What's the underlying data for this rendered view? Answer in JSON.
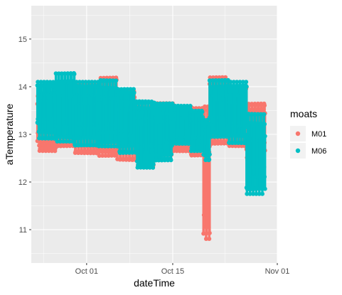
{
  "chart_data": {
    "type": "scatter",
    "title": "",
    "xlabel": "dateTime",
    "ylabel": "aTemperature",
    "x_ticks": [
      "Oct 01",
      "Oct 15",
      "Nov 01"
    ],
    "x_tick_dates": [
      "2019-10-01",
      "2019-10-15",
      "2019-11-01"
    ],
    "xlim": [
      "2019-09-22",
      "2019-11-01"
    ],
    "y_ticks": [
      11,
      12,
      13,
      14,
      15
    ],
    "ylim": [
      10.3,
      15.7
    ],
    "grid": true,
    "legend": {
      "title": "moats",
      "position": "right"
    },
    "series": [
      {
        "name": "M01",
        "color": "#F8766D",
        "ranges": [
          {
            "x_start": "2019-09-23",
            "x_end": "2019-09-26",
            "y_low": 12.65,
            "y_high": 13.85
          },
          {
            "x_start": "2019-09-26",
            "x_end": "2019-09-29",
            "y_low": 12.75,
            "y_high": 14.0
          },
          {
            "x_start": "2019-09-29",
            "x_end": "2019-10-03",
            "y_low": 12.6,
            "y_high": 14.05
          },
          {
            "x_start": "2019-10-03",
            "x_end": "2019-10-06",
            "y_low": 12.55,
            "y_high": 14.2
          },
          {
            "x_start": "2019-10-06",
            "x_end": "2019-10-09",
            "y_low": 12.45,
            "y_high": 13.9
          },
          {
            "x_start": "2019-10-09",
            "x_end": "2019-10-12",
            "y_low": 12.35,
            "y_high": 13.6
          },
          {
            "x_start": "2019-10-12",
            "x_end": "2019-10-15",
            "y_low": 12.55,
            "y_high": 13.65
          },
          {
            "x_start": "2019-10-15",
            "x_end": "2019-10-18",
            "y_low": 12.65,
            "y_high": 13.6
          },
          {
            "x_start": "2019-10-18",
            "x_end": "2019-10-20",
            "y_low": 12.55,
            "y_high": 13.55
          },
          {
            "x_start": "2019-10-20",
            "x_end": "2019-10-21",
            "y_low": 10.8,
            "y_high": 13.6
          },
          {
            "x_start": "2019-10-21",
            "x_end": "2019-10-24",
            "y_low": 12.8,
            "y_high": 14.2
          },
          {
            "x_start": "2019-10-24",
            "x_end": "2019-10-27",
            "y_low": 12.75,
            "y_high": 14.0
          },
          {
            "x_start": "2019-10-27",
            "x_end": "2019-10-30",
            "y_low": 12.45,
            "y_high": 13.65
          }
        ]
      },
      {
        "name": "M06",
        "color": "#00BFC4",
        "ranges": [
          {
            "x_start": "2019-09-23",
            "x_end": "2019-09-26",
            "y_low": 12.9,
            "y_high": 14.1
          },
          {
            "x_start": "2019-09-26",
            "x_end": "2019-09-29",
            "y_low": 12.85,
            "y_high": 14.3
          },
          {
            "x_start": "2019-09-29",
            "x_end": "2019-10-03",
            "y_low": 12.75,
            "y_high": 14.1
          },
          {
            "x_start": "2019-10-03",
            "x_end": "2019-10-06",
            "y_low": 12.75,
            "y_high": 14.15
          },
          {
            "x_start": "2019-10-06",
            "x_end": "2019-10-09",
            "y_low": 12.6,
            "y_high": 13.95
          },
          {
            "x_start": "2019-10-09",
            "x_end": "2019-10-12",
            "y_low": 12.3,
            "y_high": 13.7
          },
          {
            "x_start": "2019-10-12",
            "x_end": "2019-10-15",
            "y_low": 12.45,
            "y_high": 13.65
          },
          {
            "x_start": "2019-10-15",
            "x_end": "2019-10-18",
            "y_low": 12.8,
            "y_high": 13.6
          },
          {
            "x_start": "2019-10-18",
            "x_end": "2019-10-20",
            "y_low": 12.65,
            "y_high": 13.5
          },
          {
            "x_start": "2019-10-20",
            "x_end": "2019-10-21",
            "y_low": 12.45,
            "y_high": 13.3
          },
          {
            "x_start": "2019-10-21",
            "x_end": "2019-10-24",
            "y_low": 12.95,
            "y_high": 14.15
          },
          {
            "x_start": "2019-10-24",
            "x_end": "2019-10-27",
            "y_low": 12.8,
            "y_high": 14.1
          },
          {
            "x_start": "2019-10-27",
            "x_end": "2019-10-30",
            "y_low": 11.75,
            "y_high": 13.45
          }
        ]
      }
    ]
  },
  "colors": {
    "panel_background": "#EBEBEB",
    "grid_major": "#FFFFFF"
  }
}
